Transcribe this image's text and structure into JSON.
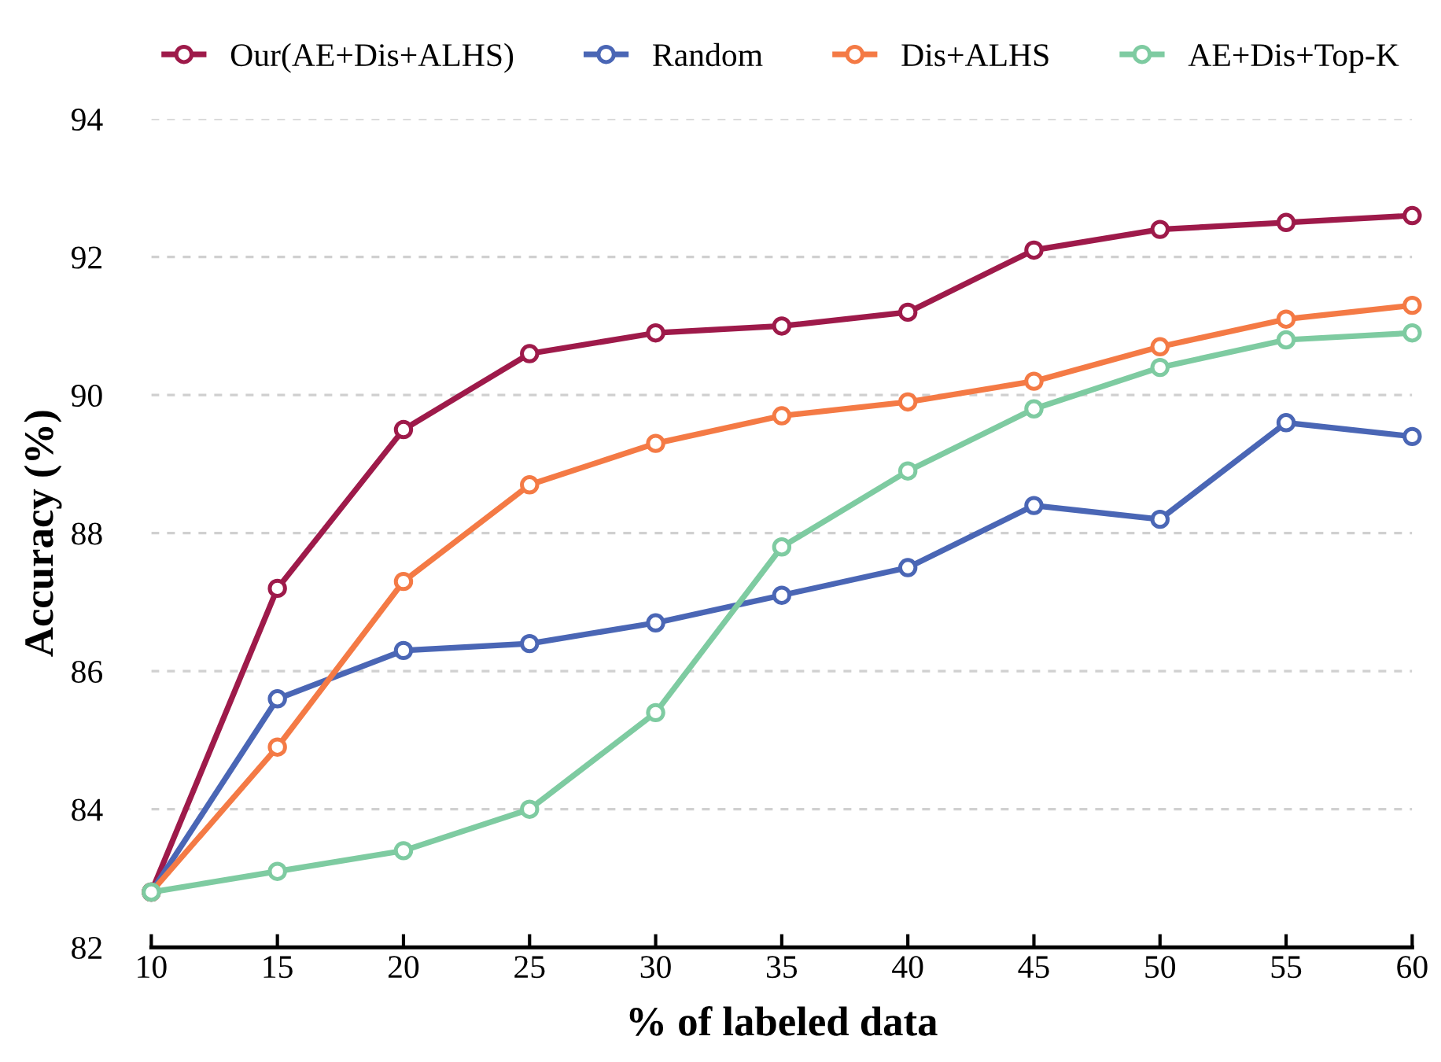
{
  "chart_data": {
    "type": "line",
    "xlabel": "% of labeled data",
    "ylabel": "Accuracy (%)",
    "x": [
      10,
      15,
      20,
      25,
      30,
      35,
      40,
      45,
      50,
      55,
      60
    ],
    "series": [
      {
        "name": "Our(AE+Dis+ALHS)",
        "color": "#9e1a4a",
        "values": [
          82.8,
          87.2,
          89.5,
          90.6,
          90.9,
          91.0,
          91.2,
          92.1,
          92.4,
          92.5,
          92.6
        ]
      },
      {
        "name": "Random",
        "color": "#4a66b5",
        "values": [
          82.8,
          85.6,
          86.3,
          86.4,
          86.7,
          87.1,
          87.5,
          88.4,
          88.2,
          89.6,
          89.4
        ]
      },
      {
        "name": "Dis+ALHS",
        "color": "#f47a45",
        "values": [
          82.8,
          84.9,
          87.3,
          88.7,
          89.3,
          89.7,
          89.9,
          90.2,
          90.7,
          91.1,
          91.3
        ]
      },
      {
        "name": "AE+Dis+Top-K",
        "color": "#7ecba1",
        "values": [
          82.8,
          83.1,
          83.4,
          84.0,
          85.4,
          87.8,
          88.9,
          89.8,
          90.4,
          90.8,
          90.9
        ]
      }
    ],
    "xlim": [
      10,
      60
    ],
    "xticks": [
      10,
      15,
      20,
      25,
      30,
      35,
      40,
      45,
      50,
      55,
      60
    ],
    "ylim": [
      82,
      94
    ],
    "yticks": [
      82,
      84,
      86,
      88,
      90,
      92,
      94
    ],
    "grid": "y",
    "legend": "top",
    "marker": "circle",
    "line_style": "solid"
  }
}
